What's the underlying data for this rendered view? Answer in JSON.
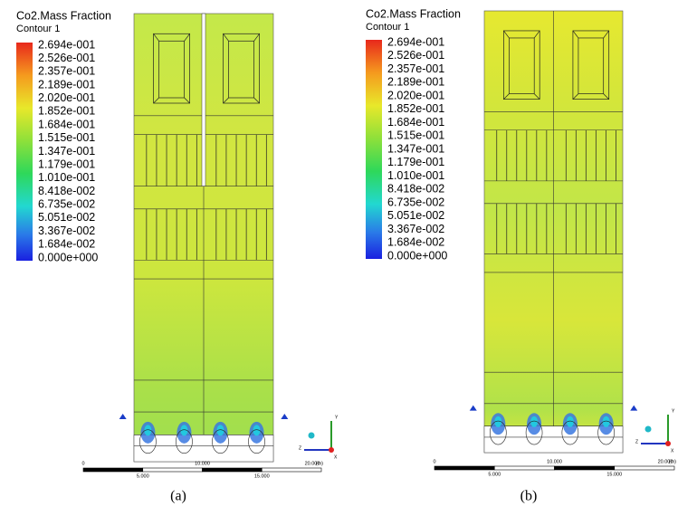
{
  "panels": [
    {
      "title": "Co2.Mass Fraction",
      "subtitle": "Contour 1",
      "legend_labels": [
        "2.694e-001",
        "2.526e-001",
        "2.357e-001",
        "2.189e-001",
        "2.020e-001",
        "1.852e-001",
        "1.684e-001",
        "1.515e-001",
        "1.347e-001",
        "1.179e-001",
        "1.010e-001",
        "8.418e-002",
        "6.735e-002",
        "5.051e-002",
        "3.367e-002",
        "1.684e-002",
        "0.000e+000"
      ],
      "scale_top": [
        "0",
        "10.000",
        "20.000"
      ],
      "scale_bottom": [
        "5.000",
        "15.000"
      ],
      "scale_unit": "(m)",
      "triad": [
        "Y",
        "Z",
        "X"
      ],
      "caption": "(a)"
    },
    {
      "title": "Co2.Mass Fraction",
      "subtitle": "Contour 1",
      "legend_labels": [
        "2.694e-001",
        "2.526e-001",
        "2.357e-001",
        "2.189e-001",
        "2.020e-001",
        "1.852e-001",
        "1.684e-001",
        "1.515e-001",
        "1.347e-001",
        "1.179e-001",
        "1.010e-001",
        "8.418e-002",
        "6.735e-002",
        "5.051e-002",
        "3.367e-002",
        "1.684e-002",
        "0.000e+000"
      ],
      "scale_top": [
        "0",
        "10.000",
        "20.000"
      ],
      "scale_bottom": [
        "5.000",
        "15.000"
      ],
      "scale_unit": "(m)",
      "triad": [
        "Y",
        "Z",
        "X"
      ],
      "caption": "(b)"
    }
  ]
}
